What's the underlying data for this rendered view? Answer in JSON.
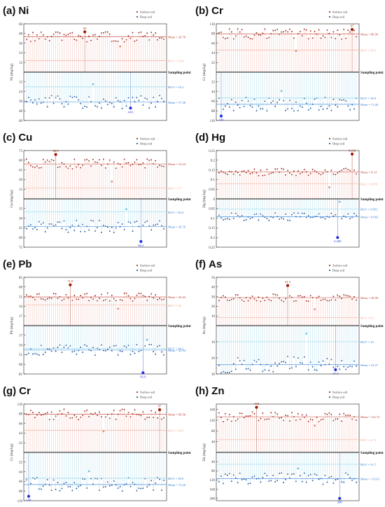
{
  "colors": {
    "surface": "#a0352a",
    "surface_stem": "#f2b8b0",
    "deep": "#2d5ea0",
    "deep_stem": "#a8d8ea",
    "mean_surface": "#c0392b",
    "mean_deep": "#2e7cd6",
    "bgv_surface": "#f1a58c",
    "bgv_deep": "#7fd1e8",
    "max_surface": "#a01a00",
    "max_deep": "#2233dd"
  },
  "legend": {
    "surface": "Surface soil",
    "deep": "Deep soil"
  },
  "zero_label": "Sampling point",
  "chart_data": [
    {
      "type": "scatter",
      "panel": "(a)",
      "element": "Ni",
      "ylabel": "Ni (mg/kg)",
      "upper_ticks": [
        60,
        48,
        36,
        24,
        12
      ],
      "lower_ticks": [
        12,
        24,
        36,
        48,
        60
      ],
      "ylim_upper": 60,
      "ylim_lower": 60,
      "mean_surface": 43.76,
      "mean_surface_label": "Mean = 43.76",
      "bgv_surface": 14.4,
      "bgv_surface_label": "BGV = 14.4",
      "bgv_deep": 18.2,
      "bgv_deep_label": "BGV = 18.2",
      "mean_deep": 37.28,
      "mean_deep_label": "Mean = 37.28",
      "max_surface": {
        "index": 28,
        "value": 50,
        "label": "50"
      },
      "max_deep": {
        "index": 50,
        "value": 44.6,
        "label": "44.6"
      },
      "min_surface": {
        "index": 45,
        "value": 32
      },
      "min_deep": {
        "index": 32,
        "value": 15
      },
      "n_points": 67
    },
    {
      "type": "scatter",
      "panel": "(b)",
      "element": "Cr",
      "ylabel": "Cr (mg/kg)",
      "upper_ticks": [
        110,
        88,
        66,
        44,
        22
      ],
      "lower_ticks": [
        22,
        44,
        66,
        88,
        110
      ],
      "ylim_upper": 110,
      "ylim_lower": 110,
      "mean_surface": 86.56,
      "mean_surface_label": "Mean = 86.56",
      "bgv_surface": 50.5,
      "bgv_surface_label": "BGV = 50.5",
      "bgv_deep": 58.9,
      "bgv_deep_label": "BGV = 58.9",
      "mean_deep": 73.26,
      "mean_deep_label": "Mean = 73.26",
      "max_surface": {
        "index": 64,
        "value": 97,
        "label": "97"
      },
      "max_deep": {
        "index": 1,
        "value": 100,
        "label": "100"
      },
      "min_surface": {
        "index": 37,
        "value": 48
      },
      "min_deep": {
        "index": 30,
        "value": 43
      },
      "n_points": 67
    },
    {
      "type": "scatter",
      "panel": "(c)",
      "element": "Cu",
      "ylabel": "Cu (mg/kg)",
      "upper_ticks": [
        75,
        60,
        45,
        30,
        15
      ],
      "lower_ticks": [
        15,
        30,
        45,
        60,
        75
      ],
      "ylim_upper": 75,
      "ylim_lower": 75,
      "mean_surface": 54.24,
      "mean_surface_label": "Mean = 54.24",
      "bgv_surface": 17,
      "bgv_surface_label": "BGV = 17",
      "bgv_deep": 20.4,
      "bgv_deep_label": "BGV = 20.4",
      "mean_deep": 42.76,
      "mean_deep_label": "Mean = 42.76",
      "max_surface": {
        "index": 14,
        "value": 68.9,
        "label": "68.9"
      },
      "max_deep": {
        "index": 55,
        "value": 66.2,
        "label": "66.2"
      },
      "min_surface": {
        "index": 41,
        "value": 27
      },
      "min_deep": {
        "index": 48,
        "value": 16
      },
      "n_points": 67
    },
    {
      "type": "scatter",
      "panel": "(d)",
      "element": "Hg",
      "ylabel": "Hg (mg/kg)",
      "upper_ticks": [
        0.25,
        0.2,
        0.15,
        0.1,
        0.05,
        0.0
      ],
      "lower_ticks": [
        0.05,
        0.1,
        0.15,
        0.2,
        0.25
      ],
      "ylim_upper": 0.25,
      "ylim_lower": 0.25,
      "mean_surface": 0.14,
      "mean_surface_label": "Mean = 0.14",
      "bgv_surface": 0.078,
      "bgv_surface_label": "BGV = 0.078",
      "bgv_deep": 0.053,
      "bgv_deep_label": "BGV = 0.053",
      "mean_deep": 0.093,
      "mean_deep_label": "Mean = 0.093",
      "max_surface": {
        "index": 64,
        "value": 0.232,
        "label": "0.232"
      },
      "max_deep": {
        "index": 57,
        "value": 0.2,
        "label": "0.200"
      },
      "min_surface": {
        "index": 53,
        "value": 0.06
      },
      "min_deep": {
        "index": 58,
        "value": 0.015
      },
      "n_points": 67
    },
    {
      "type": "scatter",
      "panel": "(e)",
      "element": "Pb",
      "ylabel": "Pb (mg/kg)",
      "upper_ticks": [
        85,
        68,
        51,
        34,
        17
      ],
      "lower_ticks": [
        17,
        34,
        51,
        68,
        85
      ],
      "ylim_upper": 85,
      "ylim_lower": 85,
      "mean_surface": 50.43,
      "mean_surface_label": "Mean = 50.43",
      "bgv_surface": 36,
      "bgv_surface_label": "BGV = 36",
      "bgv_deep": 40.2,
      "bgv_deep_label": "BGV = 40.2",
      "mean_deep": 42.94,
      "mean_deep_label": "Mean = 42.94",
      "max_surface": {
        "index": 21,
        "value": 71.8,
        "label": "71.8"
      },
      "max_deep": {
        "index": 56,
        "value": 82.9,
        "label": "82.9"
      },
      "min_surface": {
        "index": 44,
        "value": 30
      },
      "min_deep": {
        "index": 58,
        "value": 25
      },
      "n_points": 67
    },
    {
      "type": "scatter",
      "panel": "(f)",
      "element": "As",
      "ylabel": "As (mg/kg)",
      "upper_ticks": [
        50,
        40,
        30,
        20,
        10
      ],
      "lower_ticks": [
        10,
        20,
        30
      ],
      "ylim_upper": 50,
      "ylim_lower": 30,
      "mean_surface": 28.99,
      "mean_surface_label": "Mean = 28.99",
      "bgv_surface": 8.5,
      "bgv_surface_label": "BGV = 8.5",
      "bgv_deep": 10,
      "bgv_deep_label": "BGV = 10",
      "mean_deep": 24.27,
      "mean_deep_label": "Mean = 24.27",
      "max_surface": {
        "index": 33,
        "value": 41.5,
        "label": "41.5"
      },
      "max_deep": {
        "index": 56,
        "value": 27.4,
        "label": "27.4"
      },
      "min_surface": {
        "index": 46,
        "value": 17
      },
      "min_deep": {
        "index": 42,
        "value": 5
      },
      "n_points": 67
    },
    {
      "type": "scatter",
      "panel": "(g)",
      "element": "Cr",
      "ylabel": "Cr (mg/kg)",
      "upper_ticks": [
        110,
        88,
        66,
        44,
        22
      ],
      "lower_ticks": [
        22,
        44,
        66,
        88,
        110
      ],
      "ylim_upper": 110,
      "ylim_lower": 110,
      "mean_surface": 86.56,
      "mean_surface_label": "Mean = 86.56",
      "bgv_surface": 50.5,
      "bgv_surface_label": "BGV = 50.5",
      "bgv_deep": 58.9,
      "bgv_deep_label": "BGV = 58.9",
      "mean_deep": 73.26,
      "mean_deep_label": "Mean = 73.26",
      "max_surface": {
        "index": 64,
        "value": 97,
        "label": "97"
      },
      "max_deep": {
        "index": 1,
        "value": 100,
        "label": "100"
      },
      "min_surface": {
        "index": 37,
        "value": 48
      },
      "min_deep": {
        "index": 30,
        "value": 43
      },
      "n_points": 67
    },
    {
      "type": "scatter",
      "panel": "(h)",
      "element": "Zn",
      "ylabel": "Zn (mg/kg)",
      "upper_ticks": [
        160,
        120,
        80,
        40
      ],
      "lower_ticks": [
        40,
        80,
        120,
        160,
        200
      ],
      "ylim_upper": 180,
      "ylim_lower": 210,
      "mean_surface": 132.72,
      "mean_surface_label": "Mean = 132.72",
      "bgv_surface": 47.3,
      "bgv_surface_label": "BGV = 47.3",
      "bgv_deep": 51.7,
      "bgv_deep_label": "BGV = 51.7",
      "mean_deep": 113.61,
      "mean_deep_label": "Mean = 113.61",
      "max_surface": {
        "index": 18,
        "value": 168,
        "label": "168"
      },
      "max_deep": {
        "index": 58,
        "value": 200,
        "label": "200"
      },
      "min_surface": {
        "index": 46,
        "value": 100
      },
      "min_deep": {
        "index": 38,
        "value": 70
      },
      "n_points": 67
    }
  ]
}
